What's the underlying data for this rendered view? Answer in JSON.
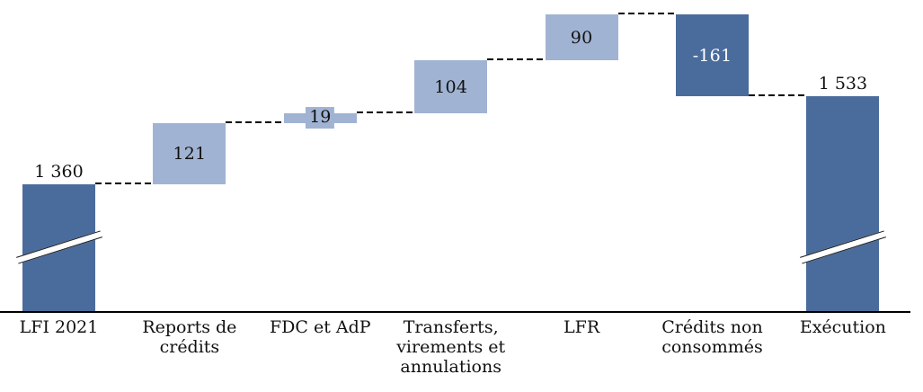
{
  "chart_data": {
    "type": "bar",
    "subtype": "waterfall",
    "title": "",
    "xlabel": "",
    "ylabel": "",
    "gridlines": false,
    "y_axis_visible": false,
    "baseline_truncated": true,
    "connector_style": "dashed",
    "categories": [
      "LFI 2021",
      "Reports de crédits",
      "FDC et AdP",
      "Transferts, virements et annulations",
      "LFR",
      "Crédits non consommés",
      "Exécution"
    ],
    "steps": [
      {
        "category_lines": [
          "LFI 2021"
        ],
        "value": 1360,
        "display": "1 360",
        "kind": "total",
        "color_role": "dark",
        "label_position": "above",
        "label_color": "#111111",
        "axis_break": true
      },
      {
        "category_lines": [
          "Reports de crédits"
        ],
        "value": 121,
        "display": "121",
        "kind": "delta",
        "color_role": "light",
        "label_position": "inside",
        "label_color": "#111111",
        "axis_break": false
      },
      {
        "category_lines": [
          "FDC et AdP"
        ],
        "value": 19,
        "display": "19",
        "kind": "delta",
        "color_role": "light",
        "label_position": "badge",
        "label_color": "#111111",
        "axis_break": false
      },
      {
        "category_lines": [
          "Transferts,",
          "virements et",
          "annulations"
        ],
        "value": 104,
        "display": "104",
        "kind": "delta",
        "color_role": "light",
        "label_position": "inside",
        "label_color": "#111111",
        "axis_break": false
      },
      {
        "category_lines": [
          "LFR"
        ],
        "value": 90,
        "display": "90",
        "kind": "delta",
        "color_role": "light",
        "label_position": "inside",
        "label_color": "#111111",
        "axis_break": false
      },
      {
        "category_lines": [
          "Crédits non",
          "consommés"
        ],
        "value": -161,
        "display": "-161",
        "kind": "delta",
        "color_role": "dark",
        "label_position": "inside",
        "label_color": "#ffffff",
        "axis_break": false
      },
      {
        "category_lines": [
          "Exécution"
        ],
        "value": 1533,
        "display": "1 533",
        "kind": "total",
        "color_role": "dark",
        "label_position": "above",
        "label_color": "#111111",
        "axis_break": true
      }
    ],
    "colors": {
      "dark_bar": "#4a6c9c",
      "light_bar": "#a1b3d2",
      "connector": "#000000",
      "axis": "#000000",
      "value_text": "#111111",
      "value_text_on_dark": "#ffffff",
      "background": "#ffffff"
    }
  }
}
